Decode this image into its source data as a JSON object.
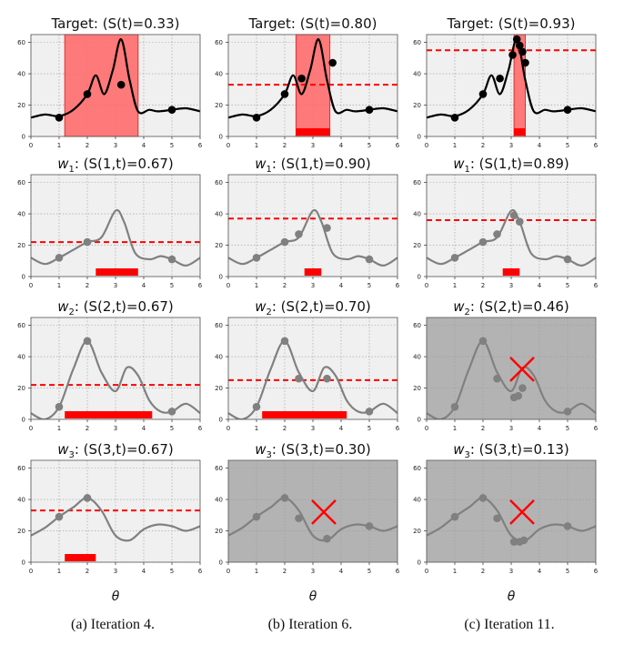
{
  "figure": {
    "xlabel": "θ",
    "captions": [
      "(a) Iteration 4.",
      "(b) Iteration 6.",
      "(c) Iteration 11."
    ],
    "colors": {
      "target_line": "#000000",
      "candidate_line": "#808080",
      "threshold": "#ff0000",
      "panel_bg": "#f0f0f0",
      "eliminated_bg": "#b3b3b3",
      "region_fill": "#ff6b6b"
    }
  },
  "chart_data": [
    {
      "id": "p00",
      "type": "line",
      "title": "Target: (S(t)=0.33)",
      "row_function": "target",
      "xlim": [
        0,
        6
      ],
      "ylim": [
        0,
        65
      ],
      "xticks": [
        0,
        1,
        2,
        3,
        4,
        5,
        6
      ],
      "yticks": [
        0,
        20,
        40,
        60
      ],
      "x": [
        0,
        0.5,
        1,
        1.5,
        2,
        2.3,
        2.6,
        2.9,
        3.2,
        3.5,
        3.8,
        4.2,
        4.5,
        5,
        5.5,
        6
      ],
      "y": [
        12,
        14,
        13,
        17,
        27,
        39,
        27,
        42,
        62,
        36,
        16,
        17,
        16,
        17,
        18,
        16
      ],
      "points": [
        {
          "x": 1,
          "y": 12
        },
        {
          "x": 2,
          "y": 27
        },
        {
          "x": 3.2,
          "y": 33
        },
        {
          "x": 5,
          "y": 17
        }
      ],
      "highlight": [
        1.2,
        3.8
      ],
      "bar": null,
      "threshold": null,
      "eliminated": false
    },
    {
      "id": "p01",
      "type": "line",
      "title": "Target: (S(t)=0.80)",
      "row_function": "target",
      "xlim": [
        0,
        6
      ],
      "ylim": [
        0,
        65
      ],
      "xticks": [
        0,
        1,
        2,
        3,
        4,
        5,
        6
      ],
      "yticks": [
        0,
        20,
        40,
        60
      ],
      "x": [
        0,
        0.5,
        1,
        1.5,
        2,
        2.3,
        2.6,
        2.9,
        3.2,
        3.5,
        3.8,
        4.2,
        4.5,
        5,
        5.5,
        6
      ],
      "y": [
        12,
        14,
        13,
        17,
        27,
        39,
        27,
        42,
        62,
        36,
        16,
        17,
        16,
        17,
        18,
        16
      ],
      "points": [
        {
          "x": 1,
          "y": 12
        },
        {
          "x": 2,
          "y": 27
        },
        {
          "x": 2.6,
          "y": 37
        },
        {
          "x": 3.7,
          "y": 47
        },
        {
          "x": 5,
          "y": 17
        }
      ],
      "highlight": [
        2.4,
        3.6
      ],
      "bar": [
        2.4,
        3.6
      ],
      "threshold": 33,
      "eliminated": false
    },
    {
      "id": "p02",
      "type": "line",
      "title": "Target: (S(t)=0.93)",
      "row_function": "target",
      "xlim": [
        0,
        6
      ],
      "ylim": [
        0,
        65
      ],
      "xticks": [
        0,
        1,
        2,
        3,
        4,
        5,
        6
      ],
      "yticks": [
        0,
        20,
        40,
        60
      ],
      "x": [
        0,
        0.5,
        1,
        1.5,
        2,
        2.3,
        2.6,
        2.9,
        3.2,
        3.5,
        3.8,
        4.2,
        4.5,
        5,
        5.5,
        6
      ],
      "y": [
        12,
        14,
        13,
        17,
        27,
        39,
        27,
        42,
        62,
        36,
        16,
        17,
        16,
        17,
        18,
        16
      ],
      "points": [
        {
          "x": 1,
          "y": 12
        },
        {
          "x": 2,
          "y": 27
        },
        {
          "x": 2.6,
          "y": 37
        },
        {
          "x": 3.05,
          "y": 52
        },
        {
          "x": 3.2,
          "y": 62
        },
        {
          "x": 3.3,
          "y": 58
        },
        {
          "x": 3.4,
          "y": 54
        },
        {
          "x": 3.5,
          "y": 47
        },
        {
          "x": 5,
          "y": 17
        }
      ],
      "highlight": [
        3.1,
        3.5
      ],
      "bar": [
        3.1,
        3.5
      ],
      "threshold": 55,
      "eliminated": false
    },
    {
      "id": "p10",
      "type": "line",
      "title": "w1: (S(1,t)=0.67)",
      "row_function": "w1",
      "xlim": [
        0,
        6
      ],
      "ylim": [
        0,
        65
      ],
      "xticks": [
        0,
        1,
        2,
        3,
        4,
        5,
        6
      ],
      "yticks": [
        0,
        20,
        40,
        60
      ],
      "x": [
        0,
        0.5,
        1,
        1.5,
        2,
        2.5,
        3,
        3.3,
        3.7,
        4.2,
        4.6,
        5,
        5.5,
        6
      ],
      "y": [
        12,
        8,
        12,
        17,
        22,
        25,
        42,
        35,
        15,
        11,
        13,
        11,
        7,
        12
      ],
      "points": [
        {
          "x": 1,
          "y": 12
        },
        {
          "x": 2,
          "y": 22
        },
        {
          "x": 5,
          "y": 11
        }
      ],
      "highlight": null,
      "bar": [
        2.3,
        3.8
      ],
      "threshold": 22,
      "eliminated": false
    },
    {
      "id": "p11",
      "type": "line",
      "title": "w1: (S(1,t)=0.90)",
      "row_function": "w1",
      "xlim": [
        0,
        6
      ],
      "ylim": [
        0,
        65
      ],
      "xticks": [
        0,
        1,
        2,
        3,
        4,
        5,
        6
      ],
      "yticks": [
        0,
        20,
        40,
        60
      ],
      "x": [
        0,
        0.5,
        1,
        1.5,
        2,
        2.5,
        3,
        3.3,
        3.7,
        4.2,
        4.6,
        5,
        5.5,
        6
      ],
      "y": [
        12,
        8,
        12,
        17,
        22,
        25,
        42,
        35,
        15,
        11,
        13,
        11,
        7,
        12
      ],
      "points": [
        {
          "x": 1,
          "y": 12
        },
        {
          "x": 2,
          "y": 22
        },
        {
          "x": 2.5,
          "y": 27
        },
        {
          "x": 3.5,
          "y": 31
        },
        {
          "x": 5,
          "y": 11
        }
      ],
      "highlight": null,
      "bar": [
        2.7,
        3.3
      ],
      "threshold": 37,
      "eliminated": false
    },
    {
      "id": "p12",
      "type": "line",
      "title": "w1: (S(1,t)=0.89)",
      "row_function": "w1",
      "xlim": [
        0,
        6
      ],
      "ylim": [
        0,
        65
      ],
      "xticks": [
        0,
        1,
        2,
        3,
        4,
        5,
        6
      ],
      "yticks": [
        0,
        20,
        40,
        60
      ],
      "x": [
        0,
        0.5,
        1,
        1.5,
        2,
        2.5,
        3,
        3.3,
        3.7,
        4.2,
        4.6,
        5,
        5.5,
        6
      ],
      "y": [
        12,
        8,
        12,
        17,
        22,
        25,
        42,
        35,
        15,
        11,
        13,
        11,
        7,
        12
      ],
      "points": [
        {
          "x": 1,
          "y": 12
        },
        {
          "x": 2,
          "y": 22
        },
        {
          "x": 2.5,
          "y": 27
        },
        {
          "x": 3.1,
          "y": 39
        },
        {
          "x": 3.3,
          "y": 35
        },
        {
          "x": 5,
          "y": 11
        }
      ],
      "highlight": null,
      "bar": [
        2.7,
        3.3
      ],
      "threshold": 36,
      "eliminated": false
    },
    {
      "id": "p20",
      "type": "line",
      "title": "w2: (S(2,t)=0.67)",
      "row_function": "w2",
      "xlim": [
        0,
        6
      ],
      "ylim": [
        0,
        65
      ],
      "xticks": [
        0,
        1,
        2,
        3,
        4,
        5,
        6
      ],
      "yticks": [
        0,
        20,
        40,
        60
      ],
      "x": [
        0,
        0.5,
        1,
        1.5,
        2,
        2.5,
        3,
        3.4,
        3.8,
        4.2,
        4.6,
        5,
        5.5,
        6
      ],
      "y": [
        4,
        0,
        8,
        32,
        50,
        30,
        18,
        33,
        28,
        12,
        5,
        5,
        10,
        4
      ],
      "points": [
        {
          "x": 1,
          "y": 8
        },
        {
          "x": 2,
          "y": 50
        },
        {
          "x": 5,
          "y": 5
        }
      ],
      "highlight": null,
      "bar": [
        1.2,
        4.3
      ],
      "threshold": 22,
      "eliminated": false
    },
    {
      "id": "p21",
      "type": "line",
      "title": "w2: (S(2,t)=0.70)",
      "row_function": "w2",
      "xlim": [
        0,
        6
      ],
      "ylim": [
        0,
        65
      ],
      "xticks": [
        0,
        1,
        2,
        3,
        4,
        5,
        6
      ],
      "yticks": [
        0,
        20,
        40,
        60
      ],
      "x": [
        0,
        0.5,
        1,
        1.5,
        2,
        2.5,
        3,
        3.4,
        3.8,
        4.2,
        4.6,
        5,
        5.5,
        6
      ],
      "y": [
        4,
        0,
        8,
        32,
        50,
        30,
        18,
        33,
        28,
        12,
        5,
        5,
        10,
        4
      ],
      "points": [
        {
          "x": 1,
          "y": 8
        },
        {
          "x": 2,
          "y": 50
        },
        {
          "x": 2.5,
          "y": 26
        },
        {
          "x": 3.5,
          "y": 26
        },
        {
          "x": 5,
          "y": 5
        }
      ],
      "highlight": null,
      "bar": [
        1.2,
        4.2
      ],
      "threshold": 25,
      "eliminated": false
    },
    {
      "id": "p22",
      "type": "line",
      "title": "w2: (S(2,t)=0.46)",
      "row_function": "w2",
      "xlim": [
        0,
        6
      ],
      "ylim": [
        0,
        65
      ],
      "xticks": [
        0,
        1,
        2,
        3,
        4,
        5,
        6
      ],
      "yticks": [
        0,
        20,
        40,
        60
      ],
      "x": [
        0,
        0.5,
        1,
        1.5,
        2,
        2.5,
        3,
        3.4,
        3.8,
        4.2,
        4.6,
        5,
        5.5,
        6
      ],
      "y": [
        4,
        0,
        8,
        32,
        50,
        30,
        18,
        33,
        28,
        12,
        5,
        5,
        10,
        4
      ],
      "points": [
        {
          "x": 1,
          "y": 8
        },
        {
          "x": 2,
          "y": 50
        },
        {
          "x": 2.5,
          "y": 26
        },
        {
          "x": 3.1,
          "y": 14
        },
        {
          "x": 3.25,
          "y": 15
        },
        {
          "x": 3.4,
          "y": 20
        },
        {
          "x": 5,
          "y": 5
        }
      ],
      "highlight": null,
      "bar": null,
      "threshold": null,
      "eliminated": true,
      "cross": {
        "x": 3.0,
        "y": 32
      }
    },
    {
      "id": "p30",
      "type": "line",
      "title": "w3: (S(3,t)=0.67)",
      "row_function": "w3",
      "xlim": [
        0,
        6
      ],
      "ylim": [
        0,
        65
      ],
      "xticks": [
        0,
        1,
        2,
        3,
        4,
        5,
        6
      ],
      "yticks": [
        0,
        20,
        40,
        60
      ],
      "x": [
        0,
        0.5,
        1,
        1.5,
        2,
        2.5,
        3,
        3.5,
        4,
        4.5,
        5,
        5.5,
        6
      ],
      "y": [
        17,
        22,
        29,
        35,
        41,
        33,
        17,
        14,
        21,
        24,
        23,
        20,
        23
      ],
      "points": [
        {
          "x": 1,
          "y": 29
        },
        {
          "x": 2,
          "y": 41
        }
      ],
      "highlight": null,
      "bar": [
        1.2,
        2.3
      ],
      "threshold": 33,
      "eliminated": false
    },
    {
      "id": "p31",
      "type": "line",
      "title": "w3: (S(3,t)=0.30)",
      "row_function": "w3",
      "xlim": [
        0,
        6
      ],
      "ylim": [
        0,
        65
      ],
      "xticks": [
        0,
        1,
        2,
        3,
        4,
        5,
        6
      ],
      "yticks": [
        0,
        20,
        40,
        60
      ],
      "x": [
        0,
        0.5,
        1,
        1.5,
        2,
        2.5,
        3,
        3.5,
        4,
        4.5,
        5,
        5.5,
        6
      ],
      "y": [
        17,
        22,
        29,
        35,
        41,
        33,
        17,
        14,
        21,
        24,
        23,
        20,
        23
      ],
      "points": [
        {
          "x": 1,
          "y": 29
        },
        {
          "x": 2,
          "y": 41
        },
        {
          "x": 2.5,
          "y": 28
        },
        {
          "x": 3.5,
          "y": 15
        },
        {
          "x": 5,
          "y": 23
        }
      ],
      "highlight": null,
      "bar": null,
      "threshold": null,
      "eliminated": true,
      "cross": {
        "x": 3.0,
        "y": 32
      }
    },
    {
      "id": "p32",
      "type": "line",
      "title": "w3: (S(3,t)=0.13)",
      "row_function": "w3",
      "xlim": [
        0,
        6
      ],
      "ylim": [
        0,
        65
      ],
      "xticks": [
        0,
        1,
        2,
        3,
        4,
        5,
        6
      ],
      "yticks": [
        0,
        20,
        40,
        60
      ],
      "x": [
        0,
        0.5,
        1,
        1.5,
        2,
        2.5,
        3,
        3.5,
        4,
        4.5,
        5,
        5.5,
        6
      ],
      "y": [
        17,
        22,
        29,
        35,
        41,
        33,
        17,
        14,
        21,
        24,
        23,
        20,
        23
      ],
      "points": [
        {
          "x": 1,
          "y": 29
        },
        {
          "x": 2,
          "y": 41
        },
        {
          "x": 2.5,
          "y": 28
        },
        {
          "x": 3.1,
          "y": 13
        },
        {
          "x": 3.3,
          "y": 13
        },
        {
          "x": 3.45,
          "y": 14
        },
        {
          "x": 5,
          "y": 23
        }
      ],
      "highlight": null,
      "bar": null,
      "threshold": null,
      "eliminated": true,
      "cross": {
        "x": 3.0,
        "y": 32
      }
    }
  ]
}
